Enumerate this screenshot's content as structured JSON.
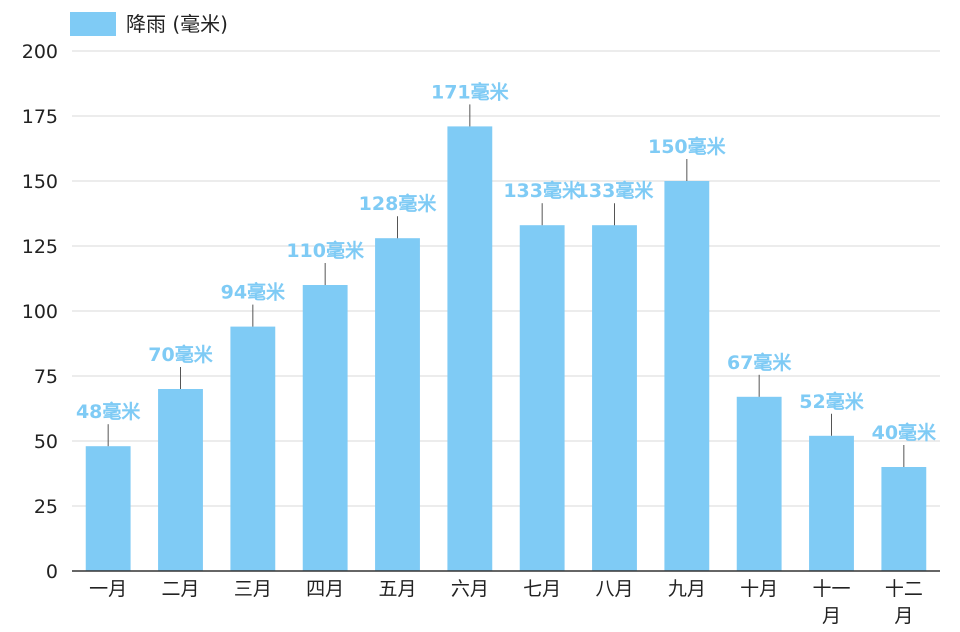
{
  "chart_data": {
    "type": "bar",
    "categories": [
      "一月",
      "二月",
      "三月",
      "四月",
      "五月",
      "六月",
      "七月",
      "八月",
      "九月",
      "十月",
      "十一月",
      "十二月"
    ],
    "series": [
      {
        "name": "降雨 (毫米)",
        "values": [
          48,
          70,
          94,
          110,
          128,
          171,
          133,
          133,
          150,
          67,
          52,
          40
        ],
        "labels": [
          "48毫米",
          "70毫米",
          "94毫米",
          "110毫米",
          "128毫米",
          "171毫米",
          "133毫米",
          "133毫米",
          "150毫米",
          "67毫米",
          "52毫米",
          "40毫米"
        ],
        "color": "#7fcbf5"
      }
    ],
    "yticks": [
      "0",
      "25",
      "50",
      "75",
      "100",
      "125",
      "150",
      "175",
      "200"
    ],
    "ylim": [
      0,
      200
    ],
    "grid": true,
    "legend_position": "top-left",
    "colors": {
      "bar": "#7fcbf5",
      "grid": "#d9d9d9",
      "axis": "#333333",
      "label": "#7fcbf5"
    }
  }
}
